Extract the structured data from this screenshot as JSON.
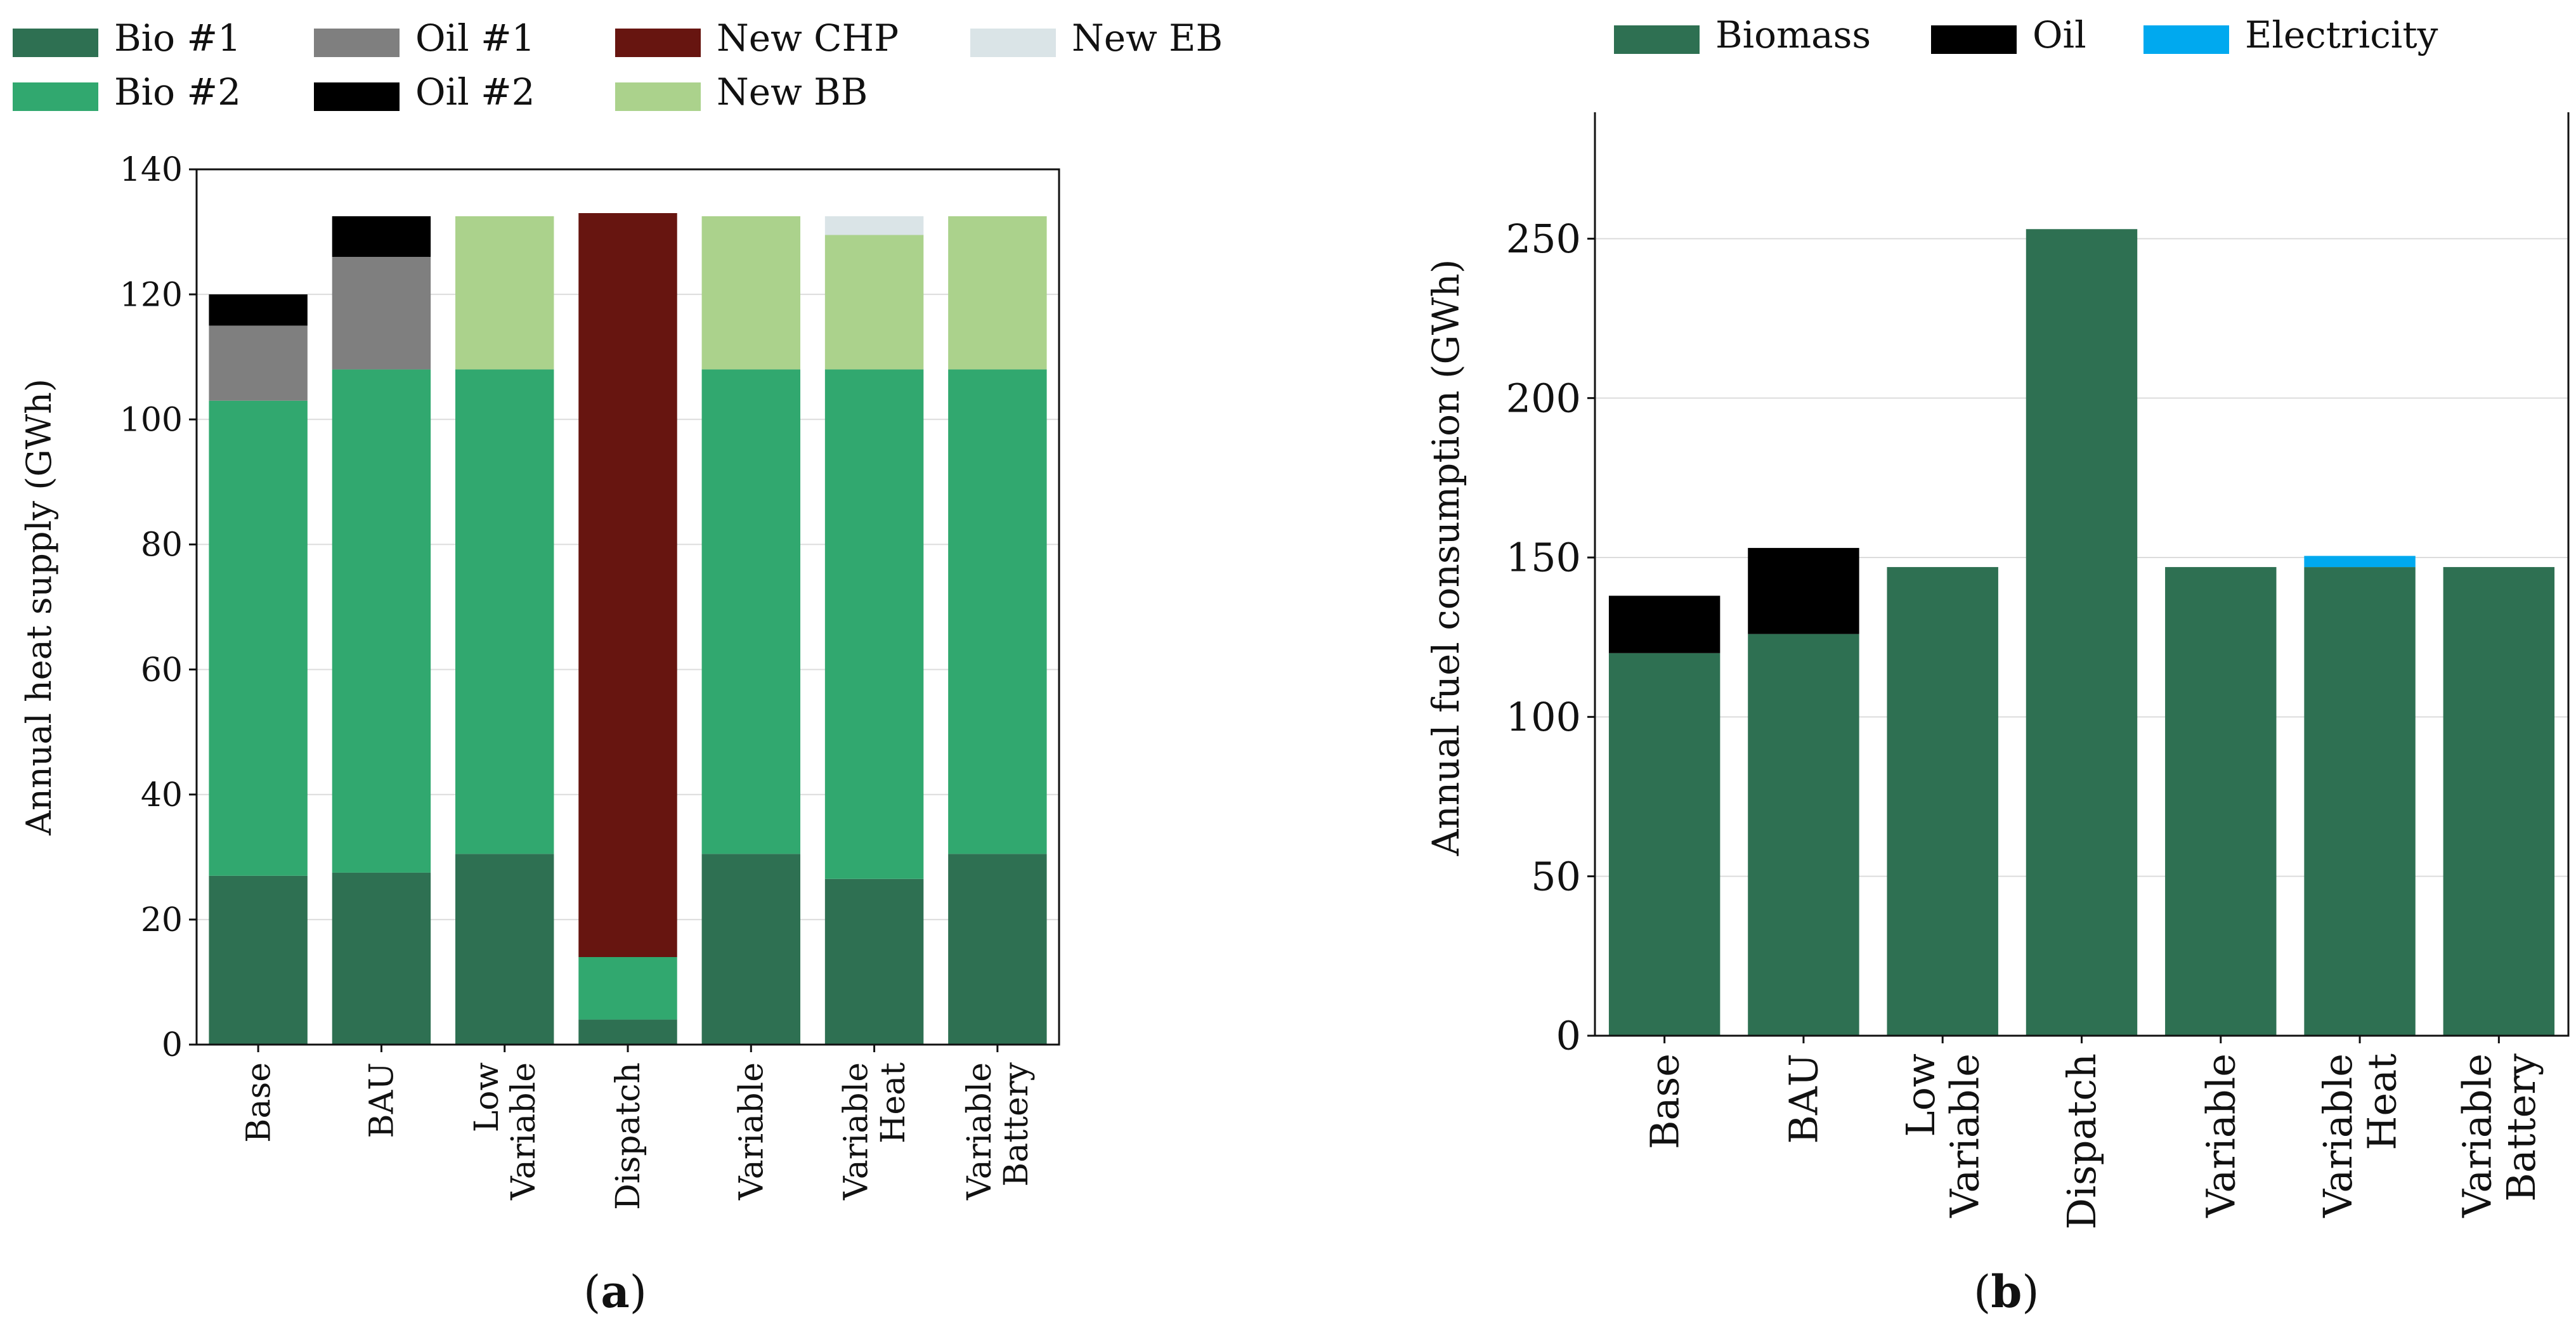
{
  "panels": [
    {
      "panel_label": "a",
      "legend": [
        {
          "name": "Bio #1",
          "color": "#2e7052"
        },
        {
          "name": "Bio #2",
          "color": "#31a86f"
        },
        {
          "name": "Oil #1",
          "color": "#7f7f7f"
        },
        {
          "name": "Oil #2",
          "color": "#000000"
        },
        {
          "name": "New CHP",
          "color": "#671510"
        },
        {
          "name": "New BB",
          "color": "#abd28c"
        },
        {
          "name": "New EB",
          "color": "#dae4e7"
        }
      ]
    },
    {
      "panel_label": "b",
      "legend": [
        {
          "name": "Biomass",
          "color": "#2e7052"
        },
        {
          "name": "Oil",
          "color": "#000000"
        },
        {
          "name": "Electricity",
          "color": "#00a9ef"
        }
      ]
    }
  ],
  "chart_data": [
    {
      "type": "bar",
      "stacked": true,
      "categories": [
        "Base",
        "BAU",
        "Low\nVariable",
        "Dispatch",
        "Variable",
        "Variable\nHeat",
        "Variable\nBattery"
      ],
      "ylabel": "Annual heat supply (GWh)",
      "xlabel": "",
      "ylim": [
        0,
        140
      ],
      "yticks": [
        0,
        20,
        40,
        60,
        80,
        100,
        120,
        140
      ],
      "grid": "horizontal",
      "legend_position": "top",
      "series": [
        {
          "name": "Bio #1",
          "color": "#2e7052",
          "values": [
            27,
            27.5,
            30.5,
            4,
            30.5,
            26.5,
            30.5
          ]
        },
        {
          "name": "Bio #2",
          "color": "#31a86f",
          "values": [
            76,
            80.5,
            77.5,
            10,
            77.5,
            81.5,
            77.5
          ]
        },
        {
          "name": "Oil #1",
          "color": "#7f7f7f",
          "values": [
            12,
            18,
            0,
            0,
            0,
            0,
            0
          ]
        },
        {
          "name": "Oil #2",
          "color": "#000000",
          "values": [
            5,
            6.5,
            0,
            0,
            0,
            0,
            0
          ]
        },
        {
          "name": "New CHP",
          "color": "#671510",
          "values": [
            0,
            0,
            0,
            119,
            0,
            0,
            0
          ]
        },
        {
          "name": "New BB",
          "color": "#abd28c",
          "values": [
            0,
            0,
            24.5,
            0,
            24.5,
            21.5,
            24.5
          ]
        },
        {
          "name": "New EB",
          "color": "#dae4e7",
          "values": [
            0,
            0,
            0,
            0,
            0,
            3,
            0
          ]
        }
      ]
    },
    {
      "type": "bar",
      "stacked": true,
      "categories": [
        "Base",
        "BAU",
        "Low\nVariable",
        "Dispatch",
        "Variable",
        "Variable\nHeat",
        "Variable\nBattery"
      ],
      "ylabel": "Annual fuel consumption (GWh)",
      "xlabel": "",
      "ylim": [
        0,
        300
      ],
      "yticks": [
        0,
        50,
        100,
        150,
        200,
        250,
        300
      ],
      "grid": "horizontal",
      "legend_position": "top",
      "series": [
        {
          "name": "Biomass",
          "color": "#2e7052",
          "values": [
            120,
            126,
            147,
            253,
            147,
            147,
            147
          ]
        },
        {
          "name": "Oil",
          "color": "#000000",
          "values": [
            18,
            27,
            0,
            0,
            0,
            0,
            0
          ]
        },
        {
          "name": "Electricity",
          "color": "#00a9ef",
          "values": [
            0,
            0,
            0,
            0,
            0,
            3.5,
            0
          ]
        }
      ]
    }
  ]
}
